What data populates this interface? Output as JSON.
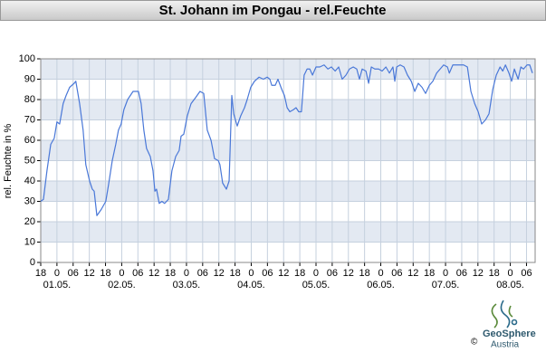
{
  "chart_data": {
    "type": "line",
    "title": "St. Johann im Pongau - rel.Feuchte",
    "y_label": "rel. Feuchte in %",
    "color": "#4a78d8",
    "grid": true,
    "ylim": [
      0,
      100
    ],
    "yticks": [
      0,
      10,
      20,
      30,
      40,
      50,
      60,
      70,
      80,
      90,
      100
    ],
    "xlim": [
      -6,
      177.2
    ],
    "xticks": [
      {
        "value": -6,
        "label": "18"
      },
      {
        "value": 0,
        "label": "0"
      },
      {
        "value": 6,
        "label": "06"
      },
      {
        "value": 12,
        "label": "12"
      },
      {
        "value": 18,
        "label": "18"
      },
      {
        "value": 24,
        "label": "0"
      },
      {
        "value": 30,
        "label": "06"
      },
      {
        "value": 36,
        "label": "12"
      },
      {
        "value": 42,
        "label": "18"
      },
      {
        "value": 48,
        "label": "0"
      },
      {
        "value": 54,
        "label": "06"
      },
      {
        "value": 60,
        "label": "12"
      },
      {
        "value": 66,
        "label": "18"
      },
      {
        "value": 72,
        "label": "0"
      },
      {
        "value": 78,
        "label": "06"
      },
      {
        "value": 84,
        "label": "12"
      },
      {
        "value": 90,
        "label": "18"
      },
      {
        "value": 96,
        "label": "0"
      },
      {
        "value": 102,
        "label": "06"
      },
      {
        "value": 108,
        "label": "12"
      },
      {
        "value": 114,
        "label": "18"
      },
      {
        "value": 120,
        "label": "0"
      },
      {
        "value": 126,
        "label": "06"
      },
      {
        "value": 132,
        "label": "12"
      },
      {
        "value": 138,
        "label": "18"
      },
      {
        "value": 144,
        "label": "0"
      },
      {
        "value": 150,
        "label": "06"
      },
      {
        "value": 156,
        "label": "12"
      },
      {
        "value": 162,
        "label": "18"
      },
      {
        "value": 168,
        "label": "0"
      },
      {
        "value": 174,
        "label": "06"
      }
    ],
    "xdates": [
      {
        "value": 0,
        "label": "01.05."
      },
      {
        "value": 24,
        "label": "02.05."
      },
      {
        "value": 48,
        "label": "03.05."
      },
      {
        "value": 72,
        "label": "04.05."
      },
      {
        "value": 96,
        "label": "05.05."
      },
      {
        "value": 120,
        "label": "06.05."
      },
      {
        "value": 144,
        "label": "07.05."
      },
      {
        "value": 168,
        "label": "08.05."
      }
    ],
    "x": [
      -6.0,
      -5.0,
      -3.7,
      -2.3,
      -1.0,
      0,
      1.0,
      2.3,
      3.4,
      4.7,
      6.4,
      7.0,
      8.4,
      9.7,
      10.7,
      12.1,
      13.1,
      13.8,
      14.8,
      16.4,
      18.1,
      19.1,
      20.5,
      21.8,
      22.8,
      23.8,
      24.8,
      26.2,
      28.2,
      30.2,
      31.2,
      32.2,
      33.2,
      34.6,
      35.6,
      36.3,
      36.9,
      37.9,
      38.9,
      39.9,
      41.3,
      42.6,
      44.0,
      45.3,
      46.0,
      47.0,
      48.3,
      49.7,
      51.4,
      53.0,
      54.4,
      55.7,
      57.1,
      58.4,
      59.8,
      60.4,
      61.4,
      62.8,
      63.8,
      64.8,
      65.5,
      66.8,
      68.1,
      69.5,
      70.5,
      71.8,
      73.2,
      74.9,
      76.5,
      77.9,
      78.9,
      79.6,
      80.9,
      81.9,
      83.3,
      84.3,
      85.3,
      86.3,
      87.6,
      88.6,
      89.6,
      90.6,
      91.6,
      92.7,
      93.7,
      94.7,
      96.0,
      97.4,
      99.0,
      100.4,
      101.7,
      103.1,
      104.4,
      105.7,
      107.1,
      108.4,
      109.8,
      111.1,
      112.1,
      113.1,
      114.5,
      115.5,
      116.5,
      117.8,
      119.2,
      120.5,
      121.9,
      123.2,
      124.5,
      125.2,
      125.9,
      127.2,
      128.6,
      129.9,
      131.3,
      132.6,
      133.9,
      135.3,
      136.6,
      138.0,
      139.3,
      140.7,
      142.0,
      143.3,
      144.7,
      145.4,
      146.7,
      148.7,
      150.7,
      152.1,
      153.4,
      154.8,
      156.1,
      157.4,
      158.8,
      160.1,
      161.5,
      162.8,
      164.2,
      165.2,
      166.2,
      167.5,
      168.5,
      169.5,
      170.9,
      171.9,
      172.9,
      174.2,
      175.2,
      176.2
    ],
    "values": [
      30,
      31,
      45,
      58,
      61,
      69,
      68,
      78,
      82,
      86,
      88,
      89,
      78,
      65,
      48,
      40,
      36,
      35,
      23,
      26,
      30,
      38,
      50,
      58,
      65,
      68,
      75,
      80,
      84,
      84,
      78,
      65,
      56,
      52,
      45,
      35,
      36,
      29,
      30,
      29,
      31,
      45,
      52,
      55,
      62,
      63,
      72,
      78,
      81,
      84,
      83,
      65,
      60,
      51,
      50,
      48,
      39,
      36,
      40,
      82,
      73,
      67,
      72,
      76,
      80,
      86,
      89,
      91,
      90,
      91,
      90,
      87,
      87,
      90,
      85,
      82,
      76,
      74,
      75,
      76,
      74,
      74,
      92,
      95,
      95,
      92,
      96,
      96,
      97,
      95,
      96,
      94,
      96,
      90,
      92,
      95,
      96,
      95,
      90,
      95,
      94,
      88,
      96,
      95,
      95,
      94,
      96,
      93,
      96,
      89,
      96,
      97,
      96,
      92,
      89,
      84,
      88,
      86,
      83,
      87,
      89,
      93,
      95,
      97,
      96,
      93,
      97,
      97,
      97,
      96,
      84,
      78,
      74,
      68,
      70,
      73,
      85,
      92,
      96,
      94,
      97,
      93,
      89,
      95,
      90,
      96,
      95,
      97,
      97,
      93
    ],
    "logo": {
      "name": "GeoSphere",
      "sub": "Austria",
      "copyright": "©"
    }
  }
}
